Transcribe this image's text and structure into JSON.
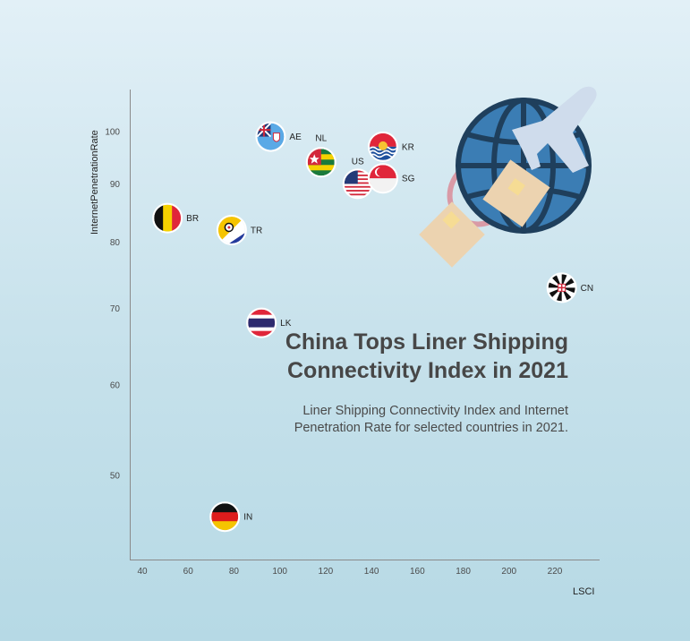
{
  "title": "China Tops Liner Shipping Connectivity Index in 2021",
  "subtitle": "Liner Shipping Connectivity Index and Internet Penetration Rate for selected countries in 2021.",
  "chart_data": {
    "type": "scatter",
    "title": "China Tops Liner Shipping Connectivity Index in 2021",
    "subtitle": "Liner Shipping Connectivity Index and Internet Penetration Rate for selected countries in 2021.",
    "xlabel": "LSCI",
    "ylabel": "InternetPenetrationRate",
    "x_ticks": [
      40,
      60,
      80,
      100,
      120,
      140,
      160,
      180,
      200,
      220
    ],
    "y_ticks": [
      50,
      60,
      70,
      80,
      90,
      100
    ],
    "y_scale": "log",
    "xlim": [
      35,
      240
    ],
    "ylim": [
      42,
      108
    ],
    "grid": false,
    "points": [
      {
        "label": "AE",
        "x": 96,
        "y": 99,
        "flag": "fiji-like"
      },
      {
        "label": "NL",
        "x": 118,
        "y": 94,
        "flag": "togo"
      },
      {
        "label": "US",
        "x": 134,
        "y": 90,
        "flag": "usa"
      },
      {
        "label": "KR",
        "x": 145,
        "y": 97,
        "flag": "kiribati"
      },
      {
        "label": "SG",
        "x": 145,
        "y": 91,
        "flag": "singapore"
      },
      {
        "label": "BR",
        "x": 51,
        "y": 84,
        "flag": "belgium"
      },
      {
        "label": "TR",
        "x": 79,
        "y": 82,
        "flag": "bonaire"
      },
      {
        "label": "CN",
        "x": 223,
        "y": 73,
        "flag": "cross"
      },
      {
        "label": "LK",
        "x": 92,
        "y": 68,
        "flag": "thailand"
      },
      {
        "label": "IN",
        "x": 76,
        "y": 46,
        "flag": "germany"
      }
    ]
  }
}
